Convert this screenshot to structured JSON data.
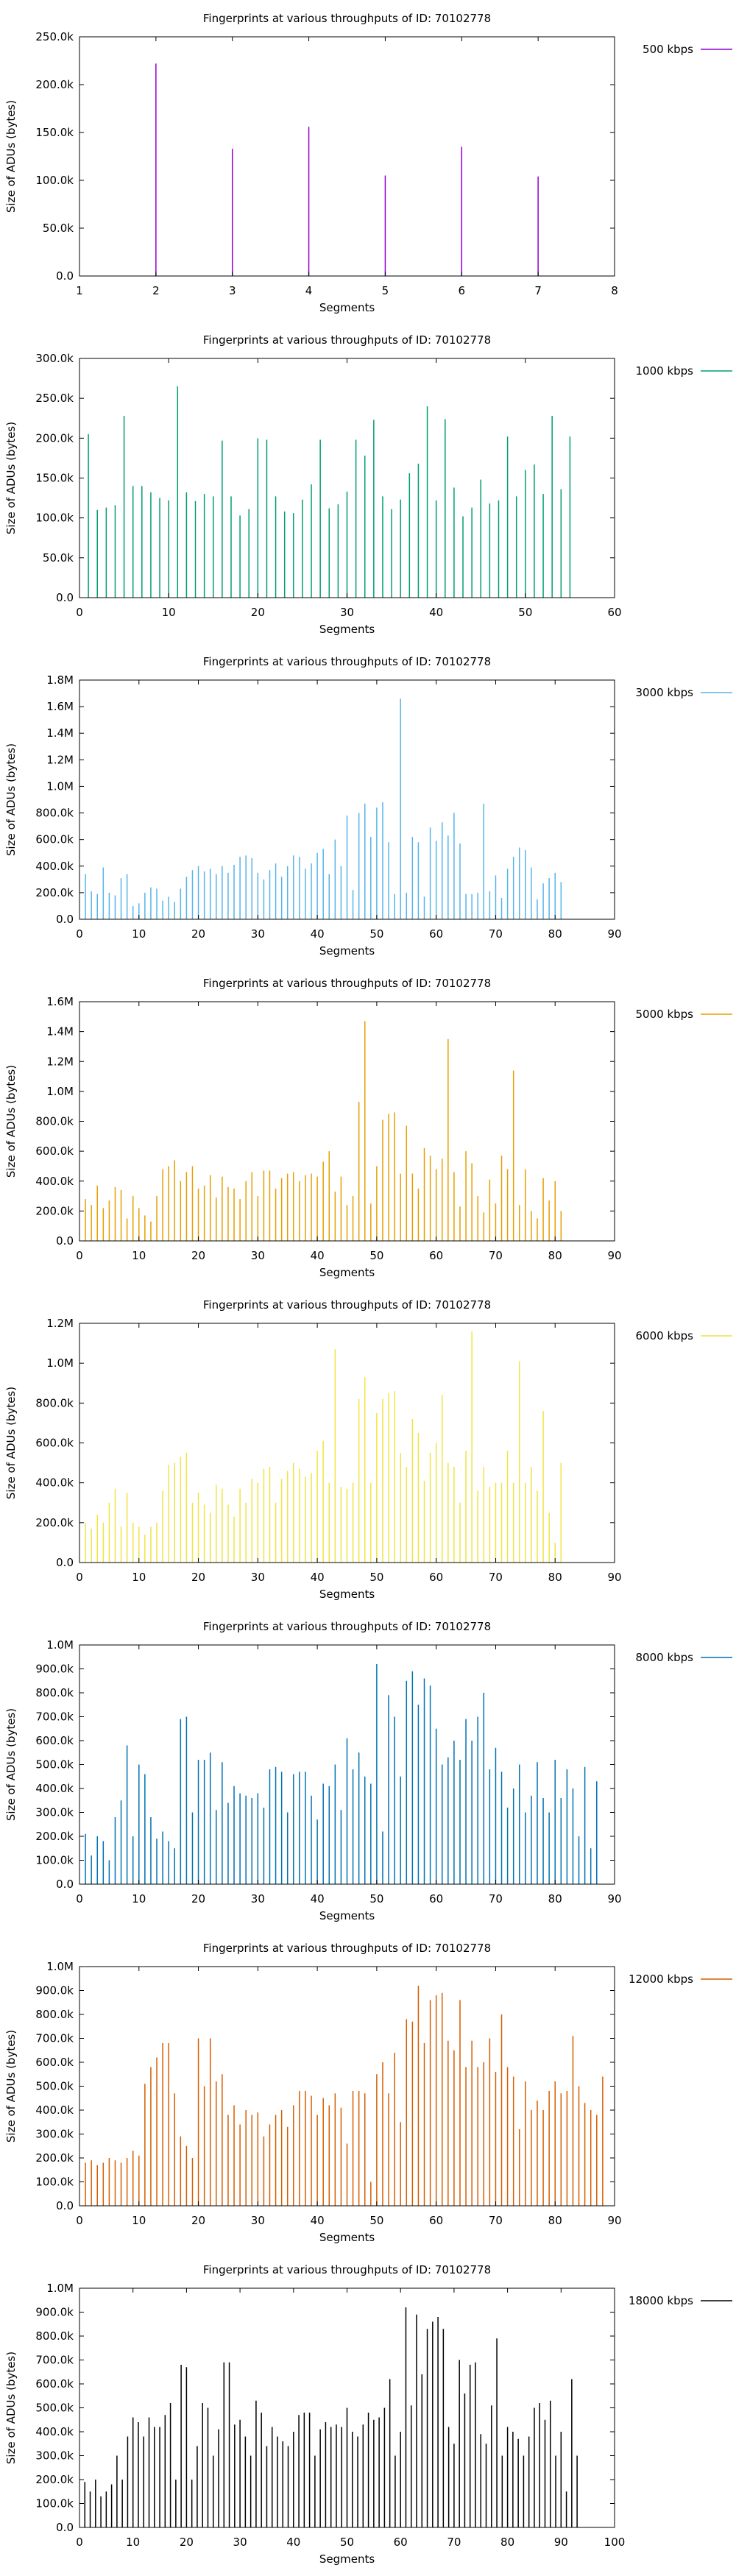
{
  "chart_data": [
    {
      "type": "bar",
      "title": "Fingerprints at various throughputs of ID: 70102778",
      "xlabel": "Segments",
      "ylabel": "Size of ADUs (bytes)",
      "legend": "500 kbps",
      "legend_position": "top-right, outside plot",
      "color": "#9400d3",
      "grid": false,
      "xlim": [
        1,
        8
      ],
      "ylim": [
        0,
        250000
      ],
      "xticks": [
        1,
        2,
        3,
        4,
        5,
        6,
        7,
        8
      ],
      "xtick_labels": [
        "1",
        "2",
        "3",
        "4",
        "5",
        "6",
        "7",
        "8"
      ],
      "yticks": [
        0,
        50000,
        100000,
        150000,
        200000,
        250000
      ],
      "ytick_labels": [
        "0.0",
        "50.0k",
        "100.0k",
        "150.0k",
        "200.0k",
        "250.0k"
      ],
      "x": [
        2,
        3,
        4,
        5,
        6,
        7
      ],
      "values": [
        222000,
        133000,
        156000,
        105000,
        135000,
        104000
      ]
    },
    {
      "type": "bar",
      "title": "Fingerprints at various throughputs of ID: 70102778",
      "xlabel": "Segments",
      "ylabel": "Size of ADUs (bytes)",
      "legend": "1000 kbps",
      "legend_position": "top-right, outside plot",
      "color": "#009e73",
      "grid": false,
      "xlim": [
        0,
        60
      ],
      "ylim": [
        0,
        300000
      ],
      "xticks": [
        0,
        10,
        20,
        30,
        40,
        50,
        60
      ],
      "xtick_labels": [
        "0",
        "10",
        "20",
        "30",
        "40",
        "50",
        "60"
      ],
      "yticks": [
        0,
        50000,
        100000,
        150000,
        200000,
        250000,
        300000
      ],
      "ytick_labels": [
        "0.0",
        "50.0k",
        "100.0k",
        "150.0k",
        "200.0k",
        "250.0k",
        "300.0k"
      ],
      "x_start": 1,
      "values": [
        205000,
        110000,
        113000,
        116000,
        228000,
        140000,
        140000,
        132000,
        125000,
        122000,
        265000,
        132000,
        121000,
        130000,
        127000,
        197000,
        127000,
        103000,
        111000,
        200000,
        198000,
        127000,
        108000,
        106000,
        123000,
        142000,
        198000,
        112000,
        117000,
        133000,
        198000,
        178000,
        223000,
        127000,
        111000,
        123000,
        156000,
        168000,
        240000,
        122000,
        224000,
        138000,
        102000,
        113000,
        148000,
        118000,
        122000,
        202000,
        127000,
        160000,
        167000,
        130000,
        228000,
        136000,
        202000
      ]
    },
    {
      "type": "bar",
      "title": "Fingerprints at various throughputs of ID: 70102778",
      "xlabel": "Segments",
      "ylabel": "Size of ADUs (bytes)",
      "legend": "3000 kbps",
      "legend_position": "top-right, outside plot",
      "color": "#56b4e9",
      "grid": false,
      "xlim": [
        0,
        90
      ],
      "ylim": [
        0,
        1800000
      ],
      "xticks": [
        0,
        10,
        20,
        30,
        40,
        50,
        60,
        70,
        80,
        90
      ],
      "xtick_labels": [
        "0",
        "10",
        "20",
        "30",
        "40",
        "50",
        "60",
        "70",
        "80",
        "90"
      ],
      "yticks": [
        0,
        200000,
        400000,
        600000,
        800000,
        1000000,
        1200000,
        1400000,
        1600000,
        1800000
      ],
      "ytick_labels": [
        "0.0",
        "200.0k",
        "400.0k",
        "600.0k",
        "800.0k",
        "1.0M",
        "1.2M",
        "1.4M",
        "1.6M",
        "1.8M"
      ],
      "x_start": 1,
      "values": [
        340000,
        210000,
        190000,
        390000,
        200000,
        180000,
        310000,
        340000,
        100000,
        120000,
        200000,
        240000,
        230000,
        140000,
        170000,
        130000,
        230000,
        320000,
        370000,
        400000,
        360000,
        380000,
        340000,
        400000,
        350000,
        410000,
        470000,
        480000,
        460000,
        350000,
        300000,
        370000,
        420000,
        320000,
        400000,
        480000,
        470000,
        380000,
        420000,
        500000,
        530000,
        340000,
        600000,
        400000,
        780000,
        220000,
        800000,
        870000,
        620000,
        840000,
        880000,
        580000,
        190000,
        1660000,
        200000,
        620000,
        580000,
        170000,
        690000,
        590000,
        730000,
        630000,
        800000,
        570000,
        190000,
        190000,
        200000,
        870000,
        210000,
        330000,
        160000,
        380000,
        470000,
        540000,
        520000,
        390000,
        150000,
        270000,
        310000,
        350000,
        280000
      ]
    },
    {
      "type": "bar",
      "title": "Fingerprints at various throughputs of ID: 70102778",
      "xlabel": "Segments",
      "ylabel": "Size of ADUs (bytes)",
      "legend": "5000 kbps",
      "legend_position": "top-right, outside plot",
      "color": "#e69f00",
      "grid": false,
      "xlim": [
        0,
        90
      ],
      "ylim": [
        0,
        1600000
      ],
      "xticks": [
        0,
        10,
        20,
        30,
        40,
        50,
        60,
        70,
        80,
        90
      ],
      "xtick_labels": [
        "0",
        "10",
        "20",
        "30",
        "40",
        "50",
        "60",
        "70",
        "80",
        "90"
      ],
      "yticks": [
        0,
        200000,
        400000,
        600000,
        800000,
        1000000,
        1200000,
        1400000,
        1600000
      ],
      "ytick_labels": [
        "0.0",
        "200.0k",
        "400.0k",
        "600.0k",
        "800.0k",
        "1.0M",
        "1.2M",
        "1.4M",
        "1.6M"
      ],
      "x_start": 1,
      "values": [
        280000,
        240000,
        370000,
        220000,
        270000,
        360000,
        340000,
        150000,
        300000,
        220000,
        170000,
        130000,
        300000,
        480000,
        500000,
        540000,
        400000,
        460000,
        500000,
        350000,
        370000,
        440000,
        290000,
        430000,
        360000,
        350000,
        280000,
        400000,
        460000,
        300000,
        470000,
        470000,
        350000,
        420000,
        450000,
        460000,
        400000,
        440000,
        450000,
        430000,
        530000,
        600000,
        330000,
        430000,
        240000,
        300000,
        930000,
        1470000,
        250000,
        500000,
        810000,
        850000,
        860000,
        450000,
        770000,
        450000,
        350000,
        620000,
        570000,
        480000,
        550000,
        1350000,
        460000,
        230000,
        600000,
        520000,
        300000,
        190000,
        410000,
        250000,
        570000,
        480000,
        1140000,
        240000,
        480000,
        200000,
        150000,
        420000,
        270000,
        400000,
        200000
      ]
    },
    {
      "type": "bar",
      "title": "Fingerprints at various throughputs of ID: 70102778",
      "xlabel": "Segments",
      "ylabel": "Size of ADUs (bytes)",
      "legend": "6000 kbps",
      "legend_position": "top-right, outside plot",
      "color": "#f0e442",
      "grid": false,
      "xlim": [
        0,
        90
      ],
      "ylim": [
        0,
        1200000
      ],
      "xticks": [
        0,
        10,
        20,
        30,
        40,
        50,
        60,
        70,
        80,
        90
      ],
      "xtick_labels": [
        "0",
        "10",
        "20",
        "30",
        "40",
        "50",
        "60",
        "70",
        "80",
        "90"
      ],
      "yticks": [
        0,
        200000,
        400000,
        600000,
        800000,
        1000000,
        1200000
      ],
      "ytick_labels": [
        "0.0",
        "200.0k",
        "400.0k",
        "600.0k",
        "800.0k",
        "1.0M",
        "1.2M"
      ],
      "x_start": 1,
      "values": [
        200000,
        170000,
        240000,
        200000,
        300000,
        370000,
        180000,
        350000,
        200000,
        180000,
        140000,
        180000,
        200000,
        360000,
        490000,
        500000,
        530000,
        550000,
        300000,
        350000,
        290000,
        250000,
        390000,
        370000,
        290000,
        230000,
        370000,
        300000,
        420000,
        400000,
        470000,
        480000,
        300000,
        420000,
        460000,
        500000,
        470000,
        430000,
        450000,
        560000,
        610000,
        400000,
        1070000,
        380000,
        370000,
        400000,
        820000,
        930000,
        400000,
        750000,
        820000,
        850000,
        860000,
        550000,
        480000,
        720000,
        650000,
        410000,
        550000,
        600000,
        840000,
        500000,
        480000,
        300000,
        560000,
        1160000,
        360000,
        480000,
        380000,
        400000,
        400000,
        560000,
        400000,
        1010000,
        400000,
        480000,
        360000,
        760000,
        250000,
        100000,
        500000
      ]
    },
    {
      "type": "bar",
      "title": "Fingerprints at various throughputs of ID: 70102778",
      "xlabel": "Segments",
      "ylabel": "Size of ADUs (bytes)",
      "legend": "8000 kbps",
      "legend_position": "top-right, outside plot",
      "color": "#0072b2",
      "grid": false,
      "xlim": [
        0,
        90
      ],
      "ylim": [
        0,
        1000000
      ],
      "xticks": [
        0,
        10,
        20,
        30,
        40,
        50,
        60,
        70,
        80,
        90
      ],
      "xtick_labels": [
        "0",
        "10",
        "20",
        "30",
        "40",
        "50",
        "60",
        "70",
        "80",
        "90"
      ],
      "yticks": [
        0,
        100000,
        200000,
        300000,
        400000,
        500000,
        600000,
        700000,
        800000,
        900000,
        1000000
      ],
      "ytick_labels": [
        "0.0",
        "100.0k",
        "200.0k",
        "300.0k",
        "400.0k",
        "500.0k",
        "600.0k",
        "700.0k",
        "800.0k",
        "900.0k",
        "1.0M"
      ],
      "x_start": 1,
      "values": [
        210000,
        120000,
        200000,
        180000,
        100000,
        280000,
        350000,
        580000,
        200000,
        500000,
        460000,
        280000,
        190000,
        220000,
        180000,
        150000,
        690000,
        700000,
        300000,
        520000,
        520000,
        550000,
        310000,
        510000,
        340000,
        410000,
        380000,
        370000,
        360000,
        380000,
        320000,
        480000,
        490000,
        470000,
        300000,
        460000,
        470000,
        470000,
        370000,
        270000,
        420000,
        410000,
        500000,
        310000,
        610000,
        480000,
        550000,
        450000,
        420000,
        920000,
        220000,
        790000,
        700000,
        450000,
        850000,
        890000,
        750000,
        860000,
        830000,
        650000,
        500000,
        530000,
        600000,
        520000,
        690000,
        600000,
        700000,
        800000,
        480000,
        570000,
        470000,
        320000,
        400000,
        500000,
        300000,
        370000,
        510000,
        360000,
        300000,
        520000,
        360000,
        480000,
        400000,
        200000,
        490000,
        150000,
        430000
      ]
    },
    {
      "type": "bar",
      "title": "Fingerprints at various throughputs of ID: 70102778",
      "xlabel": "Segments",
      "ylabel": "Size of ADUs (bytes)",
      "legend": "12000 kbps",
      "legend_position": "top-right, outside plot",
      "color": "#d55e00",
      "grid": false,
      "xlim": [
        0,
        90
      ],
      "ylim": [
        0,
        1000000
      ],
      "xticks": [
        0,
        10,
        20,
        30,
        40,
        50,
        60,
        70,
        80,
        90
      ],
      "xtick_labels": [
        "0",
        "10",
        "20",
        "30",
        "40",
        "50",
        "60",
        "70",
        "80",
        "90"
      ],
      "yticks": [
        0,
        100000,
        200000,
        300000,
        400000,
        500000,
        600000,
        700000,
        800000,
        900000,
        1000000
      ],
      "ytick_labels": [
        "0.0",
        "100.0k",
        "200.0k",
        "300.0k",
        "400.0k",
        "500.0k",
        "600.0k",
        "700.0k",
        "800.0k",
        "900.0k",
        "1.0M"
      ],
      "x_start": 1,
      "values": [
        180000,
        190000,
        170000,
        180000,
        200000,
        190000,
        180000,
        200000,
        230000,
        210000,
        510000,
        580000,
        620000,
        680000,
        680000,
        470000,
        290000,
        250000,
        200000,
        700000,
        500000,
        700000,
        520000,
        550000,
        380000,
        420000,
        340000,
        400000,
        380000,
        390000,
        290000,
        340000,
        380000,
        400000,
        330000,
        420000,
        480000,
        480000,
        460000,
        380000,
        450000,
        420000,
        470000,
        410000,
        260000,
        480000,
        480000,
        470000,
        100000,
        550000,
        600000,
        470000,
        640000,
        350000,
        780000,
        770000,
        920000,
        680000,
        860000,
        880000,
        890000,
        690000,
        650000,
        860000,
        580000,
        690000,
        580000,
        600000,
        700000,
        560000,
        800000,
        580000,
        540000,
        320000,
        520000,
        400000,
        440000,
        400000,
        480000,
        520000,
        470000,
        480000,
        710000,
        500000,
        430000,
        400000,
        380000,
        540000
      ]
    },
    {
      "type": "bar",
      "title": "Fingerprints at various throughputs of ID: 70102778",
      "xlabel": "Segments",
      "ylabel": "Size of ADUs (bytes)",
      "legend": "18000 kbps",
      "legend_position": "top-right, outside plot",
      "color": "#000000",
      "grid": false,
      "xlim": [
        0,
        100
      ],
      "ylim": [
        0,
        1000000
      ],
      "xticks": [
        0,
        10,
        20,
        30,
        40,
        50,
        60,
        70,
        80,
        90,
        100
      ],
      "xtick_labels": [
        "0",
        "10",
        "20",
        "30",
        "40",
        "50",
        "60",
        "70",
        "80",
        "90",
        "100"
      ],
      "yticks": [
        0,
        100000,
        200000,
        300000,
        400000,
        500000,
        600000,
        700000,
        800000,
        900000,
        1000000
      ],
      "ytick_labels": [
        "0.0",
        "100.0k",
        "200.0k",
        "300.0k",
        "400.0k",
        "500.0k",
        "600.0k",
        "700.0k",
        "800.0k",
        "900.0k",
        "1.0M"
      ],
      "x_start": 1,
      "values": [
        190000,
        150000,
        200000,
        130000,
        150000,
        180000,
        300000,
        200000,
        380000,
        460000,
        440000,
        380000,
        460000,
        420000,
        420000,
        470000,
        520000,
        200000,
        680000,
        670000,
        200000,
        340000,
        520000,
        500000,
        300000,
        410000,
        690000,
        690000,
        430000,
        450000,
        380000,
        300000,
        530000,
        480000,
        340000,
        420000,
        380000,
        360000,
        340000,
        400000,
        470000,
        480000,
        480000,
        300000,
        410000,
        440000,
        420000,
        430000,
        420000,
        500000,
        400000,
        380000,
        430000,
        480000,
        450000,
        460000,
        500000,
        620000,
        300000,
        400000,
        920000,
        510000,
        890000,
        640000,
        830000,
        860000,
        880000,
        830000,
        420000,
        350000,
        700000,
        560000,
        680000,
        690000,
        390000,
        350000,
        510000,
        790000,
        300000,
        420000,
        400000,
        370000,
        300000,
        380000,
        500000,
        520000,
        450000,
        530000,
        300000,
        400000,
        150000,
        620000,
        300000
      ]
    }
  ]
}
